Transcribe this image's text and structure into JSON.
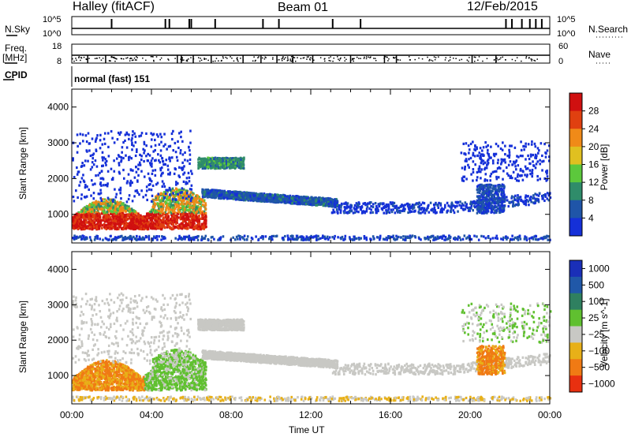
{
  "header": {
    "station": "Halley (fitACF)",
    "beam": "Beam 01",
    "date": "12/Feb/2015"
  },
  "top_panels": {
    "nsky_label": "N.Sky",
    "nsky_hi": "10^5",
    "nsky_lo": "10^0",
    "nsearch_label": "N.Search",
    "nsearch_hi": "10^5",
    "nsearch_lo": "10^0",
    "freq_label": "Freq.",
    "freq_unit": "[MHz]",
    "freq_hi": "18",
    "freq_lo": "8",
    "nave_label": "Nave",
    "nave_hi": "60",
    "nave_lo": "0",
    "cpid_label": "CPID",
    "cpid_value": "normal (fast) 151"
  },
  "chart_data": [
    {
      "type": "heatmap",
      "name": "power",
      "ylabel": "Slant Range [km]",
      "yticks": [
        "1000",
        "2000",
        "3000",
        "4000"
      ],
      "ylim": [
        200,
        4500
      ],
      "xlim": [
        0,
        24
      ],
      "colorbar_label": "Power [dB]",
      "colorbar_ticks": [
        "4",
        "8",
        "12",
        "16",
        "20",
        "24",
        "28"
      ],
      "colors": [
        "#1530d8",
        "#1f55a8",
        "#2f8c6a",
        "#5cc83c",
        "#e0c020",
        "#f08a18",
        "#e04010",
        "#d01010"
      ],
      "features": [
        {
          "t0": 0.0,
          "t1": 6.7,
          "r0": 500,
          "r1": 1300,
          "level": "high"
        },
        {
          "t0": 0.2,
          "t1": 13.0,
          "r0": 1000,
          "r1": 1600,
          "level": "medium"
        },
        {
          "t0": 6.5,
          "t1": 8.5,
          "r0": 2200,
          "r1": 2600,
          "level": "medium"
        },
        {
          "t0": 18.5,
          "t1": 22.0,
          "r0": 900,
          "r1": 1800,
          "level": "low"
        }
      ]
    },
    {
      "type": "heatmap",
      "name": "velocity",
      "ylabel": "Slant Range [km]",
      "yticks": [
        "1000",
        "2000",
        "3000",
        "4000"
      ],
      "ylim": [
        200,
        4500
      ],
      "xlim": [
        0,
        24
      ],
      "xticks": [
        "00:00",
        "04:00",
        "08:00",
        "12:00",
        "16:00",
        "20:00",
        "00:00"
      ],
      "xlabel": "Time UT",
      "colorbar_label": "Velocity [m s^-1]",
      "colorbar_ticks": [
        "1000",
        "500",
        "100",
        "25",
        "−25",
        "−100",
        "−500",
        "−1000"
      ],
      "colors": [
        "#1a2fb8",
        "#2058a8",
        "#2f8060",
        "#60c030",
        "#c8c8c4",
        "#e8b018",
        "#f07a14",
        "#e83010"
      ]
    }
  ]
}
